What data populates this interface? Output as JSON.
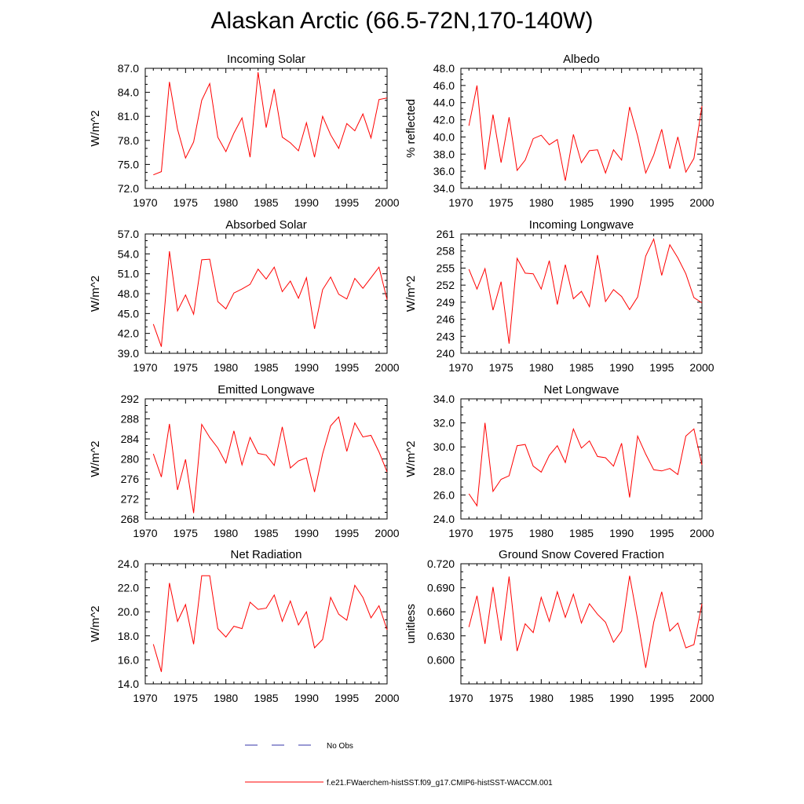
{
  "title": "Alaskan Arctic (66.5-72N,170-140W)",
  "colors": {
    "series": "#ff0000",
    "no_obs": "#3333aa",
    "axis": "#000000"
  },
  "legend": {
    "no_obs_label": "No Obs",
    "model_label": "f.e21.FWaerchem-histSST.f09_g17.CMIP6-histSST-WACCM.001"
  },
  "chart_data": [
    {
      "type": "line",
      "title": "Incoming Solar",
      "ylabel": "W/m^2",
      "xlim": [
        1970,
        2000
      ],
      "ylim": [
        72,
        87
      ],
      "yticks": [
        72,
        75,
        78,
        81,
        84,
        87
      ],
      "ytick_labels": [
        "72.0",
        "75.0",
        "78.0",
        "81.0",
        "84.0",
        "87.0"
      ],
      "xticks": [
        1970,
        1975,
        1980,
        1985,
        1990,
        1995,
        2000
      ],
      "xtick_labels": [
        "1970",
        "1975",
        "1980",
        "1985",
        "1990",
        "1995",
        "2000"
      ],
      "series": [
        {
          "x": [
            1971,
            1972,
            1973,
            1974,
            1975,
            1976,
            1977,
            1978,
            1979,
            1980,
            1981,
            1982,
            1983,
            1984,
            1985,
            1986,
            1987,
            1988,
            1989,
            1990,
            1991,
            1992,
            1993,
            1994,
            1995,
            1996,
            1997,
            1998,
            1999,
            2000
          ],
          "values": [
            73.7,
            74.1,
            85.3,
            79.4,
            75.8,
            77.8,
            83.0,
            85.1,
            78.4,
            76.6,
            78.9,
            80.8,
            75.9,
            86.5,
            79.6,
            84.4,
            78.4,
            77.7,
            76.7,
            80.2,
            75.9,
            81.0,
            78.7,
            77.0,
            80.1,
            79.2,
            81.3,
            78.3,
            83.1,
            83.3
          ]
        }
      ]
    },
    {
      "type": "line",
      "title": "Albedo",
      "ylabel": "% reflected",
      "xlim": [
        1970,
        2000
      ],
      "ylim": [
        34,
        48
      ],
      "yticks": [
        34,
        36,
        38,
        40,
        42,
        44,
        46,
        48
      ],
      "ytick_labels": [
        "34.0",
        "36.0",
        "38.0",
        "40.0",
        "42.0",
        "44.0",
        "46.0",
        "48.0"
      ],
      "xticks": [
        1970,
        1975,
        1980,
        1985,
        1990,
        1995,
        2000
      ],
      "xtick_labels": [
        "1970",
        "1975",
        "1980",
        "1985",
        "1990",
        "1995",
        "2000"
      ],
      "series": [
        {
          "x": [
            1971,
            1972,
            1973,
            1974,
            1975,
            1976,
            1977,
            1978,
            1979,
            1980,
            1981,
            1982,
            1983,
            1984,
            1985,
            1986,
            1987,
            1988,
            1989,
            1990,
            1991,
            1992,
            1993,
            1994,
            1995,
            1996,
            1997,
            1998,
            1999,
            2000
          ],
          "values": [
            41.3,
            46.0,
            36.2,
            42.6,
            37.0,
            42.3,
            36.1,
            37.3,
            39.8,
            40.2,
            39.1,
            39.7,
            34.9,
            40.3,
            37.0,
            38.4,
            38.5,
            35.8,
            38.5,
            37.3,
            43.5,
            40.1,
            35.8,
            37.9,
            40.9,
            36.3,
            40.0,
            35.9,
            37.5,
            43.6
          ]
        }
      ]
    },
    {
      "type": "line",
      "title": "Absorbed Solar",
      "ylabel": "W/m^2",
      "xlim": [
        1970,
        2000
      ],
      "ylim": [
        39,
        57
      ],
      "yticks": [
        39,
        42,
        45,
        48,
        51,
        54,
        57
      ],
      "ytick_labels": [
        "39.0",
        "42.0",
        "45.0",
        "48.0",
        "51.0",
        "54.0",
        "57.0"
      ],
      "xticks": [
        1970,
        1975,
        1980,
        1985,
        1990,
        1995,
        2000
      ],
      "xtick_labels": [
        "1970",
        "1975",
        "1980",
        "1985",
        "1990",
        "1995",
        "2000"
      ],
      "series": [
        {
          "x": [
            1971,
            1972,
            1973,
            1974,
            1975,
            1976,
            1977,
            1978,
            1979,
            1980,
            1981,
            1982,
            1983,
            1984,
            1985,
            1986,
            1987,
            1988,
            1989,
            1990,
            1991,
            1992,
            1993,
            1994,
            1995,
            1996,
            1997,
            1998,
            1999,
            2000
          ],
          "values": [
            43.4,
            40.0,
            54.4,
            45.4,
            47.8,
            44.9,
            53.1,
            53.2,
            46.8,
            45.7,
            48.1,
            48.7,
            49.4,
            51.7,
            50.2,
            52.0,
            48.3,
            49.9,
            47.3,
            50.4,
            42.7,
            48.6,
            50.5,
            47.9,
            47.2,
            50.3,
            48.8,
            50.4,
            52.0,
            47.1
          ]
        }
      ]
    },
    {
      "type": "line",
      "title": "Incoming Longwave",
      "ylabel": "W/m^2",
      "xlim": [
        1970,
        2000
      ],
      "ylim": [
        240,
        261
      ],
      "yticks": [
        240,
        243,
        246,
        249,
        252,
        255,
        258,
        261
      ],
      "ytick_labels": [
        "240",
        "243",
        "246",
        "249",
        "252",
        "255",
        "258",
        "261"
      ],
      "xticks": [
        1970,
        1975,
        1980,
        1985,
        1990,
        1995,
        2000
      ],
      "xtick_labels": [
        "1970",
        "1975",
        "1980",
        "1985",
        "1990",
        "1995",
        "2000"
      ],
      "series": [
        {
          "x": [
            1971,
            1972,
            1973,
            1974,
            1975,
            1976,
            1977,
            1978,
            1979,
            1980,
            1981,
            1982,
            1983,
            1984,
            1985,
            1986,
            1987,
            1988,
            1989,
            1990,
            1991,
            1992,
            1993,
            1994,
            1995,
            1996,
            1997,
            1998,
            1999,
            2000
          ],
          "values": [
            254.8,
            251.3,
            254.9,
            247.6,
            252.6,
            241.7,
            256.7,
            254.1,
            254.0,
            251.3,
            256.3,
            248.6,
            255.6,
            249.6,
            250.9,
            248.2,
            257.3,
            249.1,
            251.2,
            250.0,
            247.7,
            249.9,
            257.1,
            260.1,
            253.7,
            259.1,
            256.8,
            254.0,
            249.8,
            248.9
          ]
        }
      ]
    },
    {
      "type": "line",
      "title": "Emitted Longwave",
      "ylabel": "W/m^2",
      "xlim": [
        1970,
        2000
      ],
      "ylim": [
        268,
        292
      ],
      "yticks": [
        268,
        272,
        276,
        280,
        284,
        288,
        292
      ],
      "ytick_labels": [
        "268",
        "272",
        "276",
        "280",
        "284",
        "288",
        "292"
      ],
      "xticks": [
        1970,
        1975,
        1980,
        1985,
        1990,
        1995,
        2000
      ],
      "xtick_labels": [
        "1970",
        "1975",
        "1980",
        "1985",
        "1990",
        "1995",
        "2000"
      ],
      "series": [
        {
          "x": [
            1971,
            1972,
            1973,
            1974,
            1975,
            1976,
            1977,
            1978,
            1979,
            1980,
            1981,
            1982,
            1983,
            1984,
            1985,
            1986,
            1987,
            1988,
            1989,
            1990,
            1991,
            1992,
            1993,
            1994,
            1995,
            1996,
            1997,
            1998,
            1999,
            2000
          ],
          "values": [
            281.0,
            276.4,
            287.0,
            273.8,
            279.9,
            269.2,
            286.9,
            284.3,
            282.2,
            279.2,
            285.6,
            278.8,
            284.3,
            281.1,
            280.8,
            278.7,
            286.4,
            278.2,
            279.6,
            280.2,
            273.4,
            281.0,
            286.6,
            288.4,
            281.5,
            287.2,
            284.4,
            284.7,
            281.4,
            277.4
          ]
        }
      ]
    },
    {
      "type": "line",
      "title": "Net Longwave",
      "ylabel": "W/m^2",
      "xlim": [
        1970,
        2000
      ],
      "ylim": [
        24,
        34
      ],
      "yticks": [
        24,
        26,
        28,
        30,
        32,
        34
      ],
      "ytick_labels": [
        "24.0",
        "26.0",
        "28.0",
        "30.0",
        "32.0",
        "34.0"
      ],
      "xticks": [
        1970,
        1975,
        1980,
        1985,
        1990,
        1995,
        2000
      ],
      "xtick_labels": [
        "1970",
        "1975",
        "1980",
        "1985",
        "1990",
        "1995",
        "2000"
      ],
      "series": [
        {
          "x": [
            1971,
            1972,
            1973,
            1974,
            1975,
            1976,
            1977,
            1978,
            1979,
            1980,
            1981,
            1982,
            1983,
            1984,
            1985,
            1986,
            1987,
            1988,
            1989,
            1990,
            1991,
            1992,
            1993,
            1994,
            1995,
            1996,
            1997,
            1998,
            1999,
            2000
          ],
          "values": [
            26.1,
            25.1,
            32.0,
            26.3,
            27.3,
            27.6,
            30.1,
            30.2,
            28.4,
            27.9,
            29.3,
            30.1,
            28.7,
            31.5,
            29.9,
            30.5,
            29.2,
            29.1,
            28.4,
            30.3,
            25.8,
            30.9,
            29.4,
            28.1,
            28.0,
            28.2,
            27.7,
            30.9,
            31.5,
            28.5
          ]
        }
      ]
    },
    {
      "type": "line",
      "title": "Net Radiation",
      "ylabel": "W/m^2",
      "xlim": [
        1970,
        2000
      ],
      "ylim": [
        14,
        24
      ],
      "yticks": [
        14,
        16,
        18,
        20,
        22,
        24
      ],
      "ytick_labels": [
        "14.0",
        "16.0",
        "18.0",
        "20.0",
        "22.0",
        "24.0"
      ],
      "xticks": [
        1970,
        1975,
        1980,
        1985,
        1990,
        1995,
        2000
      ],
      "xtick_labels": [
        "1970",
        "1975",
        "1980",
        "1985",
        "1990",
        "1995",
        "2000"
      ],
      "series": [
        {
          "x": [
            1971,
            1972,
            1973,
            1974,
            1975,
            1976,
            1977,
            1978,
            1979,
            1980,
            1981,
            1982,
            1983,
            1984,
            1985,
            1986,
            1987,
            1988,
            1989,
            1990,
            1991,
            1992,
            1993,
            1994,
            1995,
            1996,
            1997,
            1998,
            1999,
            2000
          ],
          "values": [
            17.3,
            15.0,
            22.4,
            19.2,
            20.6,
            17.3,
            23.0,
            23.0,
            18.6,
            17.9,
            18.8,
            18.6,
            20.8,
            20.2,
            20.3,
            21.4,
            19.2,
            20.9,
            18.9,
            20.0,
            17.0,
            17.7,
            21.2,
            19.8,
            19.3,
            22.2,
            21.2,
            19.5,
            20.5,
            18.5
          ]
        }
      ]
    },
    {
      "type": "line",
      "title": "Ground Snow Covered Fraction",
      "ylabel": "unitless",
      "xlim": [
        1970,
        2000
      ],
      "ylim": [
        0.57,
        0.72
      ],
      "yticks": [
        0.6,
        0.63,
        0.66,
        0.69,
        0.72
      ],
      "ytick_labels": [
        "0.600",
        "0.630",
        "0.660",
        "0.690",
        "0.720"
      ],
      "xticks": [
        1970,
        1975,
        1980,
        1985,
        1990,
        1995,
        2000
      ],
      "xtick_labels": [
        "1970",
        "1975",
        "1980",
        "1985",
        "1990",
        "1995",
        "2000"
      ],
      "series": [
        {
          "x": [
            1971,
            1972,
            1973,
            1974,
            1975,
            1976,
            1977,
            1978,
            1979,
            1980,
            1981,
            1982,
            1983,
            1984,
            1985,
            1986,
            1987,
            1988,
            1989,
            1990,
            1991,
            1992,
            1993,
            1994,
            1995,
            1996,
            1997,
            1998,
            1999,
            2000
          ],
          "values": [
            0.641,
            0.68,
            0.62,
            0.691,
            0.624,
            0.704,
            0.611,
            0.645,
            0.634,
            0.678,
            0.648,
            0.685,
            0.653,
            0.682,
            0.646,
            0.67,
            0.657,
            0.647,
            0.622,
            0.636,
            0.705,
            0.65,
            0.59,
            0.647,
            0.685,
            0.636,
            0.646,
            0.615,
            0.619,
            0.67
          ]
        }
      ]
    }
  ]
}
